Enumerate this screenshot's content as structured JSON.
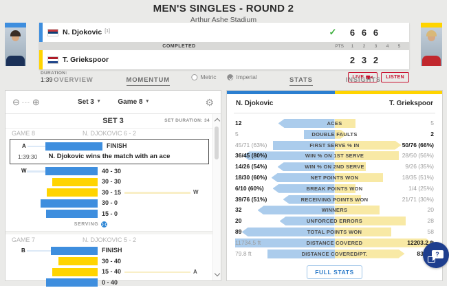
{
  "colors": {
    "blue": "#3e8ede",
    "yellow": "#ffd400",
    "light_blue": "#abccec",
    "light_yellow": "#f8e9a5",
    "red": "#c8102e",
    "green_check": "#3cae3c",
    "navy_chat": "#1e3e8e"
  },
  "icons": {
    "check": "✓",
    "zoom_out": "⊖",
    "zoom_in": "⊕",
    "zoom_dashes": "---",
    "gear": "⚙",
    "caret": "▾",
    "question": "?"
  },
  "header": {
    "title": "MEN'S SINGLES - ROUND 2",
    "subtitle": "Arthur Ashe Stadium"
  },
  "scoreboard": {
    "status": "COMPLETED",
    "pts_label": "PTS",
    "set_columns": [
      "1",
      "2",
      "3",
      "4",
      "5"
    ],
    "players": [
      {
        "name": "N. Djokovic",
        "seed": "[1]",
        "flag": "serbia",
        "sets": [
          "6",
          "6",
          "6"
        ],
        "winner": true
      },
      {
        "name": "T. Griekspoor",
        "seed": "",
        "flag": "netherlands",
        "sets": [
          "2",
          "3",
          "2"
        ],
        "winner": false
      }
    ],
    "duration_label": "DURATION:",
    "duration_value": "1:39",
    "unit_options": [
      {
        "label": "Metric",
        "selected": false
      },
      {
        "label": "Imperial",
        "selected": true
      }
    ],
    "live_button": "LIVE",
    "listen_button": "LISTEN"
  },
  "tabs_left": [
    {
      "label": "OVERVIEW",
      "active": false
    },
    {
      "label": "MOMENTUM",
      "active": true
    }
  ],
  "tabs_right": [
    {
      "label": "STATS",
      "active": true
    },
    {
      "label": "INSIGHTS",
      "active": false
    }
  ],
  "momentum": {
    "set_dropdown": "Set 3",
    "game_dropdown": "Game 8",
    "set_header": "SET 3",
    "set_duration": "SET DURATION: 34",
    "serving_label": "SERVING",
    "games": [
      {
        "title": "GAME 8",
        "score": "N. DJOKOVIC 6 - 2",
        "serving": true,
        "finish": {
          "annot": "A",
          "time": "1:39:30",
          "label": "FINISH",
          "description": "N. Djokovic wins the match with an ace",
          "color": "blue",
          "width": 83
        },
        "points": [
          {
            "annot": "W",
            "color": "blue",
            "width": 76,
            "label": "40 - 30",
            "trail": ""
          },
          {
            "annot": "",
            "color": "yellow",
            "width": 66,
            "label": "30 - 30",
            "trail": ""
          },
          {
            "annot": "",
            "color": "yellow",
            "width": 74,
            "label": "30 - 15",
            "trail": "W"
          },
          {
            "annot": "",
            "color": "blue",
            "width": 83,
            "label": "30 - 0",
            "trail": ""
          },
          {
            "annot": "",
            "color": "blue",
            "width": 75,
            "label": "15 - 0",
            "trail": ""
          }
        ]
      },
      {
        "title": "GAME 7",
        "score": "N. DJOKOVIC 5 - 2",
        "serving": false,
        "points": [
          {
            "annot": "B",
            "color": "blue",
            "width": 68,
            "label": "FINISH",
            "trail": ""
          },
          {
            "annot": "",
            "color": "yellow",
            "width": 57,
            "label": "30 - 40",
            "trail": ""
          },
          {
            "annot": "",
            "color": "yellow",
            "width": 66,
            "label": "15 - 40",
            "trail": "A"
          },
          {
            "annot": "",
            "color": "blue",
            "width": 75,
            "label": "0 - 40",
            "trail": ""
          }
        ]
      }
    ]
  },
  "stats": {
    "left_player": "N. Djokovic",
    "right_player": "T. Griekspoor",
    "rows": [
      {
        "label": "ACES",
        "left": "12",
        "right": "5",
        "winner": "left",
        "lw": 82,
        "rw": 30
      },
      {
        "label": "DOUBLE FAULTS",
        "left": "5",
        "right": "2",
        "winner": "right",
        "lw": 45,
        "rw": 18
      },
      {
        "label": "FIRST SERVE % IN",
        "left": "45/71 (63%)",
        "right": "50/76 (66%)",
        "winner": "right",
        "lw": 90,
        "rw": 97
      },
      {
        "label": "WIN % ON 1ST SERVE",
        "left": "36/45 (80%)",
        "right": "28/50 (56%)",
        "winner": "left",
        "lw": 133,
        "rw": 93
      },
      {
        "label": "WIN % ON 2ND SERVE",
        "left": "14/26 (54%)",
        "right": "9/26 (35%)",
        "winner": "left",
        "lw": 83,
        "rw": 45
      },
      {
        "label": "NET POINTS WON",
        "left": "18/30 (60%)",
        "right": "18/35 (51%)",
        "winner": "left",
        "lw": 92,
        "rw": 70
      },
      {
        "label": "BREAK POINTS WON",
        "left": "6/10 (60%)",
        "right": "1/4 (25%)",
        "winner": "left",
        "lw": 90,
        "rw": 30
      },
      {
        "label": "RECEIVING POINTS WON",
        "left": "39/76 (51%)",
        "right": "21/71 (30%)",
        "winner": "left",
        "lw": 75,
        "rw": 38
      },
      {
        "label": "WINNERS",
        "left": "32",
        "right": "20",
        "winner": "left",
        "lw": 112,
        "rw": 65
      },
      {
        "label": "UNFORCED ERRORS",
        "left": "20",
        "right": "28",
        "winner": "left",
        "lw": 80,
        "rw": 103
      },
      {
        "label": "TOTAL POINTS WON",
        "left": "89",
        "right": "58",
        "winner": "left",
        "lw": 135,
        "rw": 82
      },
      {
        "label": "DISTANCE COVERED",
        "left": "11734.5 ft",
        "right": "12203.2 ft",
        "winner": "right",
        "lw": 145,
        "rw": 142
      },
      {
        "label": "DISTANCE COVERED/PT.",
        "left": "79.8 ft",
        "right": "83.0 ft",
        "winner": "right",
        "lw": 98,
        "rw": 102
      }
    ],
    "full_stats_button": "FULL STATS"
  }
}
